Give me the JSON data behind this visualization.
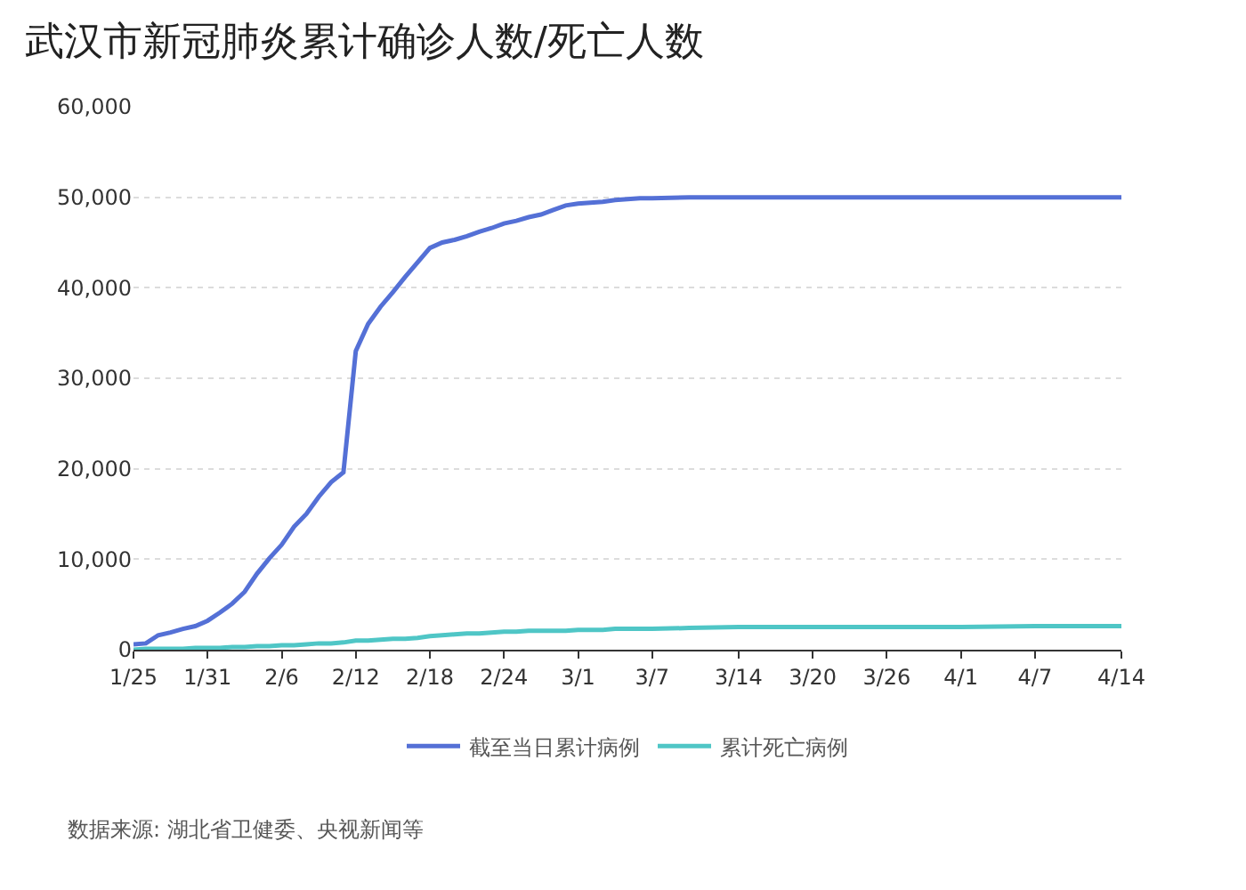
{
  "chart_data": {
    "type": "line",
    "title": "武汉市新冠肺炎累计确诊人数/死亡人数",
    "x": [
      "--01-25",
      "--01-26",
      "--01-27",
      "--01-28",
      "--01-29",
      "--01-30",
      "--01-31",
      "--02-01",
      "--02-02",
      "--02-03",
      "--02-04",
      "--02-05",
      "--02-06",
      "--02-07",
      "--02-08",
      "--02-09",
      "--02-10",
      "--02-11",
      "--02-12",
      "--02-13",
      "--02-14",
      "--02-15",
      "--02-16",
      "--02-17",
      "--02-18",
      "--02-19",
      "--02-20",
      "--02-21",
      "--02-22",
      "--02-23",
      "--02-24",
      "--02-25",
      "--02-26",
      "--02-27",
      "--02-28",
      "--02-29",
      "--03-01",
      "--03-02",
      "--03-03",
      "--03-04",
      "--03-05",
      "--03-06",
      "--03-07",
      "--03-10",
      "--03-14",
      "--03-20",
      "--03-26",
      "--04-01",
      "--04-07",
      "--04-14"
    ],
    "series": [
      {
        "name": "截至当日累计病例",
        "color": "#5470d6",
        "values": [
          600,
          700,
          1600,
          1900,
          2300,
          2600,
          3200,
          4100,
          5100,
          6400,
          8400,
          10100,
          11600,
          13600,
          15000,
          16900,
          18500,
          19600,
          33000,
          36000,
          37900,
          39500,
          41200,
          42800,
          44400,
          45000,
          45300,
          45700,
          46200,
          46600,
          47100,
          47400,
          47800,
          48100,
          48600,
          49100,
          49300,
          49400,
          49500,
          49700,
          49800,
          49900,
          49900,
          50000,
          50000,
          50000,
          50000,
          50000,
          50000,
          50000
        ]
      },
      {
        "name": "累计死亡病例",
        "color": "#4fc6c6",
        "values": [
          0,
          100,
          100,
          100,
          100,
          200,
          200,
          200,
          300,
          300,
          400,
          400,
          500,
          500,
          600,
          700,
          700,
          800,
          1000,
          1000,
          1100,
          1200,
          1200,
          1300,
          1500,
          1600,
          1700,
          1800,
          1800,
          1900,
          2000,
          2000,
          2100,
          2100,
          2100,
          2100,
          2200,
          2200,
          2200,
          2300,
          2300,
          2300,
          2300,
          2400,
          2500,
          2500,
          2500,
          2500,
          2600,
          2600
        ]
      }
    ],
    "xlim": [
      "--01-25",
      "--04-14"
    ],
    "xticks": [
      {
        "value": "--01-25",
        "label": "1/25"
      },
      {
        "value": "--01-31",
        "label": "1/31"
      },
      {
        "value": "--02-06",
        "label": "2/6"
      },
      {
        "value": "--02-12",
        "label": "2/12"
      },
      {
        "value": "--02-18",
        "label": "2/18"
      },
      {
        "value": "--02-24",
        "label": "2/24"
      },
      {
        "value": "--03-01",
        "label": "3/1"
      },
      {
        "value": "--03-07",
        "label": "3/7"
      },
      {
        "value": "--03-14",
        "label": "3/14"
      },
      {
        "value": "--03-20",
        "label": "3/20"
      },
      {
        "value": "--03-26",
        "label": "3/26"
      },
      {
        "value": "--04-01",
        "label": "4/1"
      },
      {
        "value": "--04-07",
        "label": "4/7"
      },
      {
        "value": "--04-14",
        "label": "4/14"
      }
    ],
    "ylim": [
      0,
      60000
    ],
    "yticks": [
      0,
      {
        "value": 10000,
        "label": "10,000"
      },
      {
        "value": 20000,
        "label": "20,000"
      },
      {
        "value": 30000,
        "label": "30,000"
      },
      {
        "value": 40000,
        "label": "40,000"
      },
      {
        "value": 50000,
        "label": "50,000"
      },
      {
        "value": 60000,
        "label": "60,000"
      }
    ],
    "grid": "y",
    "legend": "bottom",
    "marker": "none",
    "line_style": "solid",
    "annotations": [
      "数据来源: 湖北省卫健委、央视新闻等"
    ]
  }
}
